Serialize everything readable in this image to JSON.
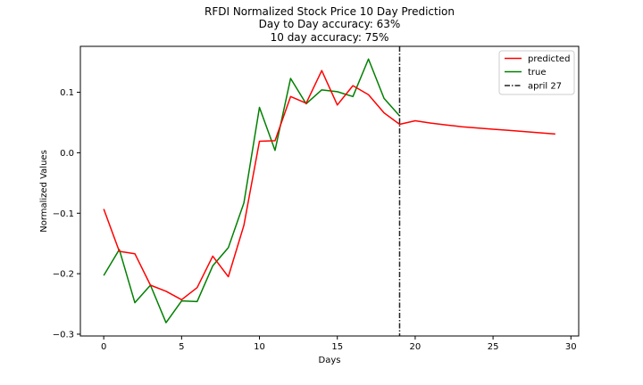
{
  "chart_data": {
    "type": "line",
    "title": "RFDI Normalized Stock Price 10 Day Prediction",
    "subtitle_lines": [
      "Day to Day accuracy: 63%",
      "10 day accuracy: 75%"
    ],
    "xlabel": "Days",
    "ylabel": "Normalized Values",
    "xlim": [
      -1.5,
      30.5
    ],
    "ylim": [
      -0.303,
      0.176
    ],
    "xticks": [
      0,
      5,
      10,
      15,
      20,
      25,
      30
    ],
    "yticks": [
      -0.3,
      -0.2,
      -0.1,
      0.0,
      0.1
    ],
    "ytick_labels": [
      "−0.3",
      "−0.2",
      "−0.1",
      "0.0",
      "0.1"
    ],
    "grid": false,
    "legend_position": "top-right",
    "series": [
      {
        "name": "predicted",
        "color": "#ff0000",
        "style": "solid",
        "x": [
          0,
          1,
          2,
          3,
          4,
          5,
          6,
          7,
          8,
          9,
          10,
          11,
          12,
          13,
          14,
          15,
          16,
          17,
          18,
          19,
          20,
          21,
          22,
          23,
          24,
          25,
          26,
          27,
          28,
          29
        ],
        "y": [
          -0.093,
          -0.163,
          -0.167,
          -0.219,
          -0.229,
          -0.243,
          -0.223,
          -0.171,
          -0.205,
          -0.12,
          0.019,
          0.02,
          0.093,
          0.082,
          0.136,
          0.079,
          0.111,
          0.096,
          0.066,
          0.047,
          0.053,
          0.049,
          0.046,
          0.043,
          0.041,
          0.039,
          0.037,
          0.035,
          0.033,
          0.031
        ]
      },
      {
        "name": "true",
        "color": "#008000",
        "style": "solid",
        "x": [
          0,
          1,
          2,
          3,
          4,
          5,
          6,
          7,
          8,
          9,
          10,
          11,
          12,
          13,
          14,
          15,
          16,
          17,
          18,
          19
        ],
        "y": [
          -0.203,
          -0.16,
          -0.248,
          -0.219,
          -0.281,
          -0.245,
          -0.246,
          -0.187,
          -0.157,
          -0.083,
          0.075,
          0.004,
          0.123,
          0.081,
          0.104,
          0.101,
          0.093,
          0.155,
          0.09,
          0.061
        ]
      }
    ],
    "vline": {
      "name": "april 27",
      "x": 19,
      "color": "#222222",
      "style": "dashdot"
    }
  }
}
